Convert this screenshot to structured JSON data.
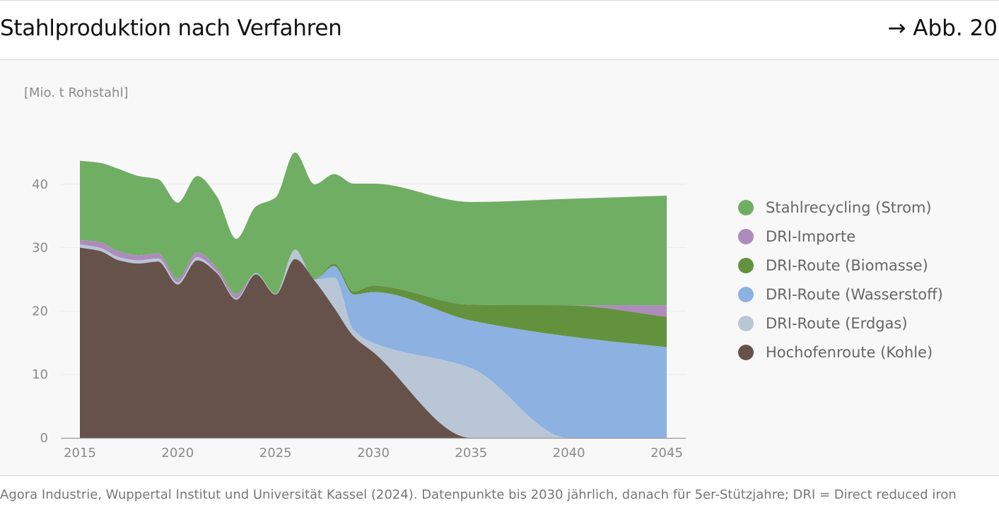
{
  "header": {
    "title": "Stahlproduktion nach Verfahren",
    "figure_ref": "→ Abb. 20"
  },
  "source_note": "Agora Industrie, Wuppertal Institut und Universität Kassel (2024). Datenpunkte bis 2030 jährlich, danach für 5er-Stützjahre; DRI = Direct reduced iron",
  "chart_data": {
    "type": "area",
    "stacked": true,
    "ylabel": "[Mio. t Rohstahl]",
    "xlabel": "",
    "ylim": [
      0,
      45
    ],
    "xlim": [
      2015,
      2045
    ],
    "y_ticks": [
      0,
      10,
      20,
      30,
      40
    ],
    "x_ticks": [
      2015,
      2020,
      2025,
      2030,
      2035,
      2040,
      2045
    ],
    "grid": true,
    "legend_position": "right",
    "x": [
      2015,
      2016,
      2017,
      2018,
      2019,
      2020,
      2021,
      2022,
      2023,
      2024,
      2025,
      2026,
      2027,
      2028,
      2029,
      2030,
      2035,
      2040,
      2045
    ],
    "series": [
      {
        "name": "Hochofenroute (Kohle)",
        "color": "#67524b",
        "values": [
          30.0,
          29.5,
          28.0,
          27.5,
          27.8,
          24.2,
          28.0,
          26.0,
          21.8,
          25.8,
          22.6,
          28.2,
          24.8,
          20.5,
          16.0,
          13.5,
          0.0,
          0.0,
          0.0
        ]
      },
      {
        "name": "DRI-Route (Erdgas)",
        "color": "#b8c6d6",
        "values": [
          0.5,
          0.5,
          0.5,
          0.5,
          0.5,
          0.3,
          0.5,
          0.2,
          0.2,
          0.2,
          0.1,
          1.5,
          0.2,
          4.8,
          1.0,
          1.5,
          11.0,
          0.0,
          0.0
        ]
      },
      {
        "name": "DRI-Route (Wasserstoff)",
        "color": "#8db1e0",
        "values": [
          0.0,
          0.0,
          0.0,
          0.0,
          0.0,
          0.0,
          0.0,
          0.0,
          0.0,
          0.0,
          0.0,
          0.0,
          0.0,
          1.8,
          5.6,
          8.0,
          7.5,
          16.0,
          14.3
        ]
      },
      {
        "name": "DRI-Route (Biomasse)",
        "color": "#62923d",
        "values": [
          0.0,
          0.0,
          0.0,
          0.0,
          0.0,
          0.0,
          0.0,
          0.0,
          0.0,
          0.0,
          0.0,
          0.0,
          0.0,
          0.4,
          0.5,
          1.0,
          2.5,
          4.9,
          4.8
        ]
      },
      {
        "name": "DRI-Importe",
        "color": "#ad8cbc",
        "values": [
          0.7,
          0.9,
          0.9,
          0.8,
          0.8,
          0.6,
          0.8,
          0.6,
          0.7,
          0.0,
          0.0,
          0.0,
          0.0,
          0.0,
          0.0,
          0.0,
          0.0,
          0.0,
          1.8
        ]
      },
      {
        "name": "Stahlrecycling (Strom)",
        "color": "#70ae64",
        "values": [
          12.5,
          12.5,
          13.0,
          12.5,
          11.7,
          12.0,
          12.0,
          11.3,
          8.7,
          10.5,
          15.2,
          15.3,
          15.0,
          14.1,
          17.0,
          16.1,
          16.2,
          16.8,
          17.3
        ]
      }
    ]
  },
  "legend": {
    "items": [
      {
        "label": "Stahlrecycling (Strom)",
        "color": "#70ae64"
      },
      {
        "label": "DRI-Importe",
        "color": "#ad8cbc"
      },
      {
        "label": "DRI-Route (Biomasse)",
        "color": "#62923d"
      },
      {
        "label": "DRI-Route (Wasserstoff)",
        "color": "#8db1e0"
      },
      {
        "label": "DRI-Route (Erdgas)",
        "color": "#b8c6d6"
      },
      {
        "label": "Hochofenroute (Kohle)",
        "color": "#67524b"
      }
    ]
  }
}
